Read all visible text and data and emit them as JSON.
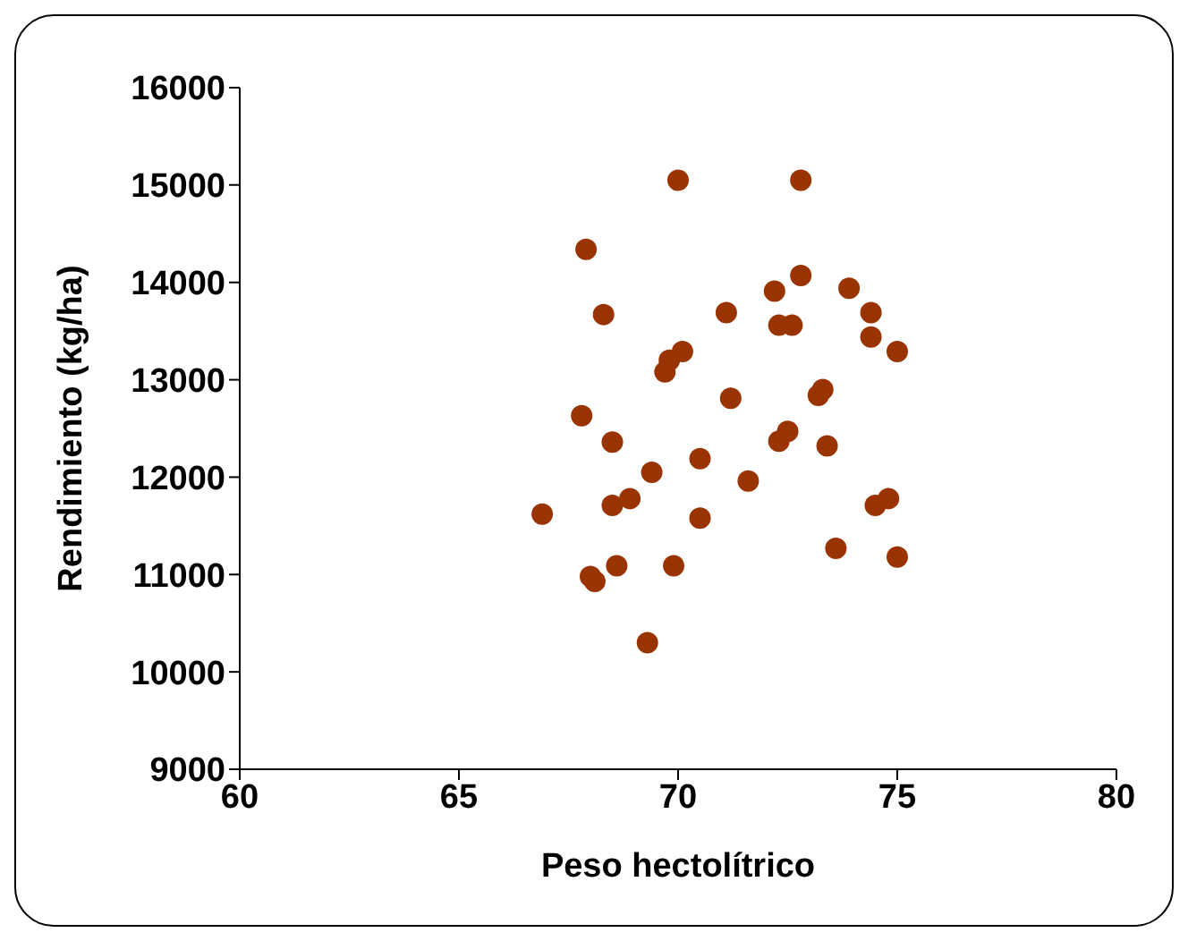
{
  "chart_data": {
    "type": "scatter",
    "xlabel": "Peso hectolítrico",
    "ylabel": "Rendimiento (kg/ha)",
    "marker": "circle",
    "grid": false,
    "legend": false,
    "xlim": [
      60,
      80
    ],
    "xticks": [
      60,
      65,
      70,
      75,
      80
    ],
    "ylim": [
      9000,
      16000
    ],
    "yticks": [
      9000,
      10000,
      11000,
      12000,
      13000,
      14000,
      15000,
      16000
    ],
    "series": [
      {
        "color": "#993300",
        "x": [
          70.0,
          72.8,
          67.9,
          72.8,
          72.2,
          73.9,
          68.3,
          71.1,
          72.3,
          72.6,
          74.4,
          74.4,
          75.0,
          70.1,
          69.8,
          69.7,
          71.2,
          73.3,
          73.2,
          67.8,
          68.5,
          72.5,
          72.3,
          73.4,
          70.5,
          69.4,
          71.6,
          66.9,
          68.5,
          68.9,
          70.5,
          74.5,
          74.8,
          73.6,
          75.0,
          68.0,
          68.1,
          68.6,
          69.9,
          69.3
        ],
        "values": [
          15050,
          15050,
          14340,
          14070,
          13910,
          13940,
          13670,
          13690,
          13560,
          13560,
          13690,
          13440,
          13290,
          13290,
          13200,
          13080,
          12810,
          12900,
          12840,
          12630,
          12360,
          12470,
          12370,
          12320,
          12190,
          12050,
          11960,
          11620,
          11710,
          11780,
          11580,
          11710,
          11780,
          11270,
          11180,
          10980,
          10930,
          11090,
          11090,
          10300
        ]
      }
    ]
  }
}
